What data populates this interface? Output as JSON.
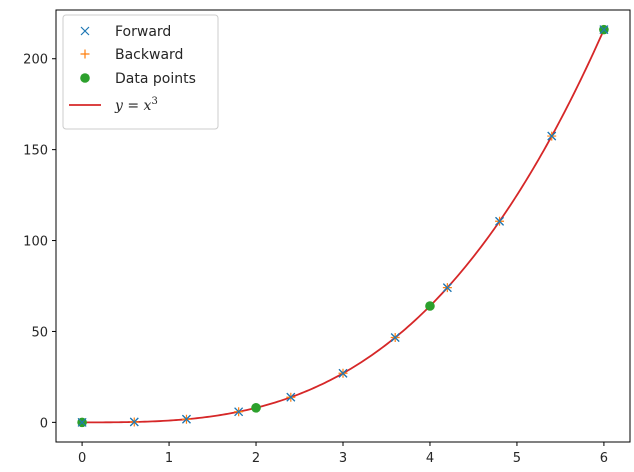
{
  "chart_data": {
    "type": "line",
    "title": "",
    "xlabel": "",
    "ylabel": "",
    "xlim": [
      -0.3,
      6.3
    ],
    "ylim": [
      -10.8,
      226.8
    ],
    "xticks": [
      0,
      1,
      2,
      3,
      4,
      5,
      6
    ],
    "yticks": [
      0,
      50,
      100,
      150,
      200
    ],
    "grid": false,
    "legend": "top-left",
    "series": [
      {
        "name": "Forward",
        "kind": "marker-x",
        "color": "#1f77b4",
        "x": [
          0,
          0.6,
          1.2,
          1.8,
          2.4,
          3.0,
          3.6,
          4.2,
          4.8,
          5.4,
          6.0
        ],
        "y": [
          0,
          0.216,
          1.728,
          5.832,
          13.824,
          27,
          46.656,
          74.088,
          110.592,
          157.464,
          216
        ]
      },
      {
        "name": "Backward",
        "kind": "marker-plus",
        "color": "#ff7f0e",
        "x": [
          0,
          0.6,
          1.2,
          1.8,
          2.4,
          3.0,
          3.6,
          4.2,
          4.8,
          5.4,
          6.0
        ],
        "y": [
          0,
          0.216,
          1.728,
          5.832,
          13.824,
          27,
          46.656,
          74.088,
          110.592,
          157.464,
          216
        ]
      },
      {
        "name": "Data points",
        "kind": "marker-dot",
        "color": "#2ca02c",
        "x": [
          0,
          2,
          4,
          6
        ],
        "y": [
          0,
          8,
          64,
          216
        ]
      },
      {
        "name": "y = x³",
        "kind": "line",
        "color": "#d62728",
        "function": "x^3"
      }
    ],
    "legend_entries": [
      {
        "label": "Forward",
        "math": false
      },
      {
        "label": "Backward",
        "math": false
      },
      {
        "label": "Data points",
        "math": false
      },
      {
        "label_base": "y = x",
        "label_sup": "3",
        "math": true
      }
    ]
  }
}
